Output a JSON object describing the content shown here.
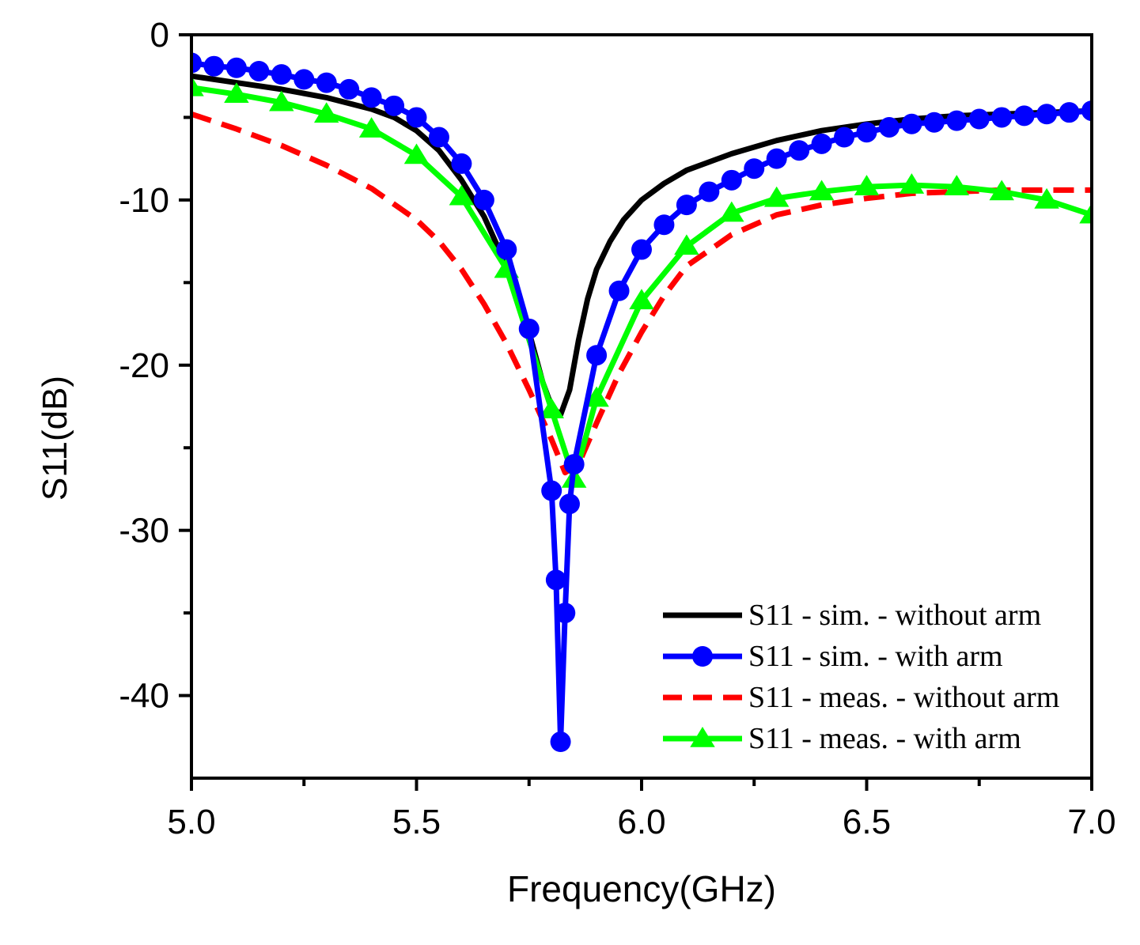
{
  "chart_data": {
    "type": "line",
    "title": "",
    "xlabel": "Frequency(GHz)",
    "ylabel": "S11(dB)",
    "xlim": [
      5.0,
      7.0
    ],
    "ylim": [
      -45,
      0
    ],
    "x_ticks": [
      5.0,
      5.5,
      6.0,
      6.5,
      7.0
    ],
    "x_tick_labels": [
      "5.0",
      "5.5",
      "6.0",
      "6.5",
      "7.0"
    ],
    "x_minor_ticks": [
      5.25,
      5.75,
      6.25,
      6.75
    ],
    "y_ticks": [
      0,
      -10,
      -20,
      -30,
      -40
    ],
    "y_tick_labels": [
      "0",
      "-10",
      "-20",
      "-30",
      "-40"
    ],
    "y_minor_ticks": [
      -5,
      -15,
      -25,
      -35
    ],
    "grid": false,
    "legend_position": "bottom-right",
    "series": [
      {
        "name": "S11 - sim. - without arm",
        "color": "#000000",
        "style": "solid",
        "marker": "none",
        "x": [
          5.0,
          5.1,
          5.2,
          5.3,
          5.4,
          5.45,
          5.5,
          5.55,
          5.6,
          5.65,
          5.7,
          5.75,
          5.78,
          5.8,
          5.82,
          5.84,
          5.86,
          5.88,
          5.9,
          5.93,
          5.96,
          6.0,
          6.05,
          6.1,
          6.2,
          6.3,
          6.4,
          6.5,
          6.6,
          6.7,
          6.8,
          6.9,
          7.0
        ],
        "y": [
          -2.5,
          -2.9,
          -3.3,
          -3.8,
          -4.5,
          -5.0,
          -5.8,
          -7.0,
          -8.8,
          -11.0,
          -14.0,
          -18.0,
          -21.0,
          -22.5,
          -23.0,
          -21.5,
          -18.5,
          -16.0,
          -14.2,
          -12.5,
          -11.2,
          -10.0,
          -9.0,
          -8.2,
          -7.2,
          -6.4,
          -5.8,
          -5.4,
          -5.1,
          -4.9,
          -4.8,
          -4.7,
          -4.6
        ]
      },
      {
        "name": "S11 - sim. - with arm",
        "color": "#0000ff",
        "style": "solid",
        "marker": "circle",
        "x": [
          5.0,
          5.05,
          5.1,
          5.15,
          5.2,
          5.25,
          5.3,
          5.35,
          5.4,
          5.45,
          5.5,
          5.55,
          5.6,
          5.65,
          5.7,
          5.75,
          5.8,
          5.81,
          5.82,
          5.83,
          5.84,
          5.85,
          5.9,
          5.95,
          6.0,
          6.05,
          6.1,
          6.15,
          6.2,
          6.25,
          6.3,
          6.35,
          6.4,
          6.45,
          6.5,
          6.55,
          6.6,
          6.65,
          6.7,
          6.75,
          6.8,
          6.85,
          6.9,
          6.95,
          7.0
        ],
        "y": [
          -1.7,
          -1.9,
          -2.0,
          -2.2,
          -2.4,
          -2.7,
          -2.9,
          -3.3,
          -3.8,
          -4.3,
          -5.0,
          -6.2,
          -7.8,
          -10.0,
          -13.0,
          -17.8,
          -27.6,
          -33.0,
          -42.8,
          -35.0,
          -28.4,
          -26.0,
          -19.4,
          -15.5,
          -13.0,
          -11.5,
          -10.3,
          -9.5,
          -8.8,
          -8.1,
          -7.5,
          -7.0,
          -6.6,
          -6.2,
          -5.9,
          -5.6,
          -5.4,
          -5.3,
          -5.2,
          -5.1,
          -5.0,
          -4.9,
          -4.8,
          -4.7,
          -4.6
        ]
      },
      {
        "name": "S11 - meas. - without arm",
        "color": "#ff0000",
        "style": "dashed",
        "marker": "none",
        "x": [
          5.0,
          5.1,
          5.2,
          5.3,
          5.4,
          5.5,
          5.55,
          5.6,
          5.65,
          5.7,
          5.75,
          5.8,
          5.83,
          5.86,
          5.9,
          5.95,
          6.0,
          6.05,
          6.1,
          6.2,
          6.3,
          6.4,
          6.5,
          6.6,
          6.7,
          6.8,
          6.9,
          7.0
        ],
        "y": [
          -4.8,
          -5.7,
          -6.7,
          -7.9,
          -9.3,
          -11.2,
          -12.5,
          -14.2,
          -16.3,
          -18.7,
          -21.5,
          -24.5,
          -26.5,
          -26.0,
          -23.5,
          -20.5,
          -18.0,
          -15.8,
          -14.0,
          -12.1,
          -10.9,
          -10.3,
          -9.9,
          -9.6,
          -9.5,
          -9.4,
          -9.4,
          -9.4
        ]
      },
      {
        "name": "S11 - meas. - with arm",
        "color": "#00ff00",
        "style": "solid",
        "marker": "triangle",
        "x": [
          5.0,
          5.1,
          5.2,
          5.3,
          5.4,
          5.5,
          5.6,
          5.7,
          5.8,
          5.85,
          5.9,
          6.0,
          6.1,
          6.2,
          6.3,
          6.4,
          6.5,
          6.6,
          6.7,
          6.8,
          6.9,
          7.0
        ],
        "y": [
          -3.2,
          -3.6,
          -4.1,
          -4.8,
          -5.7,
          -7.3,
          -9.8,
          -14.2,
          -22.7,
          -26.9,
          -22.0,
          -16.1,
          -12.8,
          -10.8,
          -9.9,
          -9.5,
          -9.2,
          -9.1,
          -9.2,
          -9.5,
          -10.0,
          -10.9
        ]
      }
    ]
  }
}
